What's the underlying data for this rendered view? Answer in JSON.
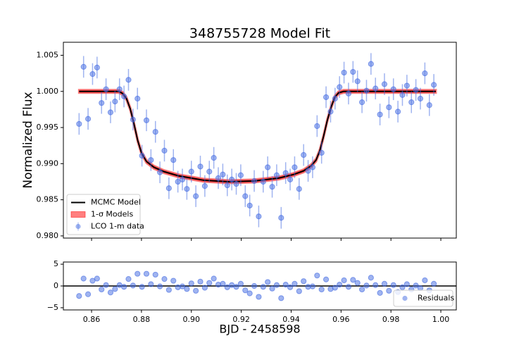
{
  "chart_data": [
    {
      "type": "errorbar",
      "title": "348755728 Model Fit",
      "ylabel": "Normalized Flux",
      "xlim": [
        0.8487,
        1.0062
      ],
      "ylim": [
        0.9797,
        1.0068
      ],
      "yticks": [
        {
          "value": 0.98,
          "label": "0.980"
        },
        0.985,
        {
          "value": 0.99,
          "label": "0.990"
        },
        0.995,
        {
          "value": 1.0,
          "label": "1.000"
        },
        1.005
      ],
      "legend": "lower left",
      "series": [
        {
          "name": "MCMC Model",
          "kind": "line",
          "color": "#000000",
          "x": [
            0.855,
            0.871,
            0.8725,
            0.874,
            0.8755,
            0.877,
            0.8785,
            0.88,
            0.882,
            0.885,
            0.889,
            0.895,
            0.905,
            0.915,
            0.925,
            0.935,
            0.941,
            0.945,
            0.948,
            0.95,
            0.9515,
            0.953,
            0.9545,
            0.956,
            0.9575,
            0.959,
            0.961,
            0.998
          ],
          "values": [
            1.0,
            1.0,
            0.9997,
            0.999,
            0.9976,
            0.9955,
            0.9932,
            0.9915,
            0.9903,
            0.9895,
            0.9889,
            0.9883,
            0.9877,
            0.9875,
            0.9876,
            0.988,
            0.9885,
            0.989,
            0.9897,
            0.9905,
            0.9918,
            0.9938,
            0.996,
            0.9978,
            0.9992,
            0.9998,
            1.0,
            1.0
          ]
        },
        {
          "name": "1-σ Models",
          "kind": "band",
          "color": "#ff0000",
          "x": [
            0.855,
            0.871,
            0.8725,
            0.874,
            0.8755,
            0.877,
            0.8785,
            0.88,
            0.882,
            0.885,
            0.889,
            0.895,
            0.905,
            0.915,
            0.925,
            0.935,
            0.941,
            0.945,
            0.948,
            0.95,
            0.9515,
            0.953,
            0.9545,
            0.956,
            0.9575,
            0.959,
            0.961,
            0.998
          ],
          "low": [
            0.9998,
            0.9998,
            0.9995,
            0.9988,
            0.9974,
            0.9953,
            0.993,
            0.9913,
            0.9901,
            0.9893,
            0.9887,
            0.9881,
            0.9875,
            0.9873,
            0.9874,
            0.9878,
            0.9883,
            0.9888,
            0.9895,
            0.9903,
            0.9916,
            0.9936,
            0.9958,
            0.9976,
            0.999,
            0.9996,
            0.9998,
            0.9998
          ],
          "high": [
            1.0002,
            1.0002,
            0.9999,
            0.9992,
            0.9978,
            0.9957,
            0.9934,
            0.9917,
            0.9905,
            0.9897,
            0.9891,
            0.9885,
            0.9879,
            0.9877,
            0.9878,
            0.9882,
            0.9887,
            0.9892,
            0.9899,
            0.9907,
            0.992,
            0.994,
            0.9962,
            0.998,
            0.9994,
            1.0,
            1.0002,
            1.0002
          ]
        },
        {
          "name": "LCO 1-m data",
          "kind": "points",
          "color": "#4169e1",
          "error": 0.0015,
          "x": [
            0.855,
            0.8568,
            0.8586,
            0.8604,
            0.8622,
            0.864,
            0.8658,
            0.8676,
            0.8694,
            0.8712,
            0.873,
            0.8748,
            0.8766,
            0.8784,
            0.8802,
            0.882,
            0.8838,
            0.8856,
            0.8874,
            0.8892,
            0.891,
            0.8928,
            0.8946,
            0.8964,
            0.8982,
            0.9,
            0.9018,
            0.9036,
            0.9054,
            0.9072,
            0.909,
            0.9108,
            0.9126,
            0.9144,
            0.9162,
            0.918,
            0.9198,
            0.9216,
            0.9234,
            0.9252,
            0.927,
            0.9288,
            0.9306,
            0.9324,
            0.9342,
            0.936,
            0.9378,
            0.9396,
            0.9414,
            0.9432,
            0.945,
            0.9468,
            0.9486,
            0.9504,
            0.9522,
            0.954,
            0.9558,
            0.9576,
            0.9594,
            0.9612,
            0.963,
            0.9648,
            0.9666,
            0.9684,
            0.9702,
            0.972,
            0.9738,
            0.9756,
            0.9774,
            0.9792,
            0.981,
            0.9828,
            0.9846,
            0.9864,
            0.9882,
            0.99,
            0.9918,
            0.9936,
            0.9954,
            0.9972
          ],
          "values": [
            0.9955,
            1.0034,
            0.9962,
            1.0024,
            1.0033,
            0.9984,
            1.0003,
            0.9971,
            0.9986,
            1.0003,
            0.9993,
            1.0016,
            0.9961,
            0.999,
            0.9911,
            0.996,
            0.9905,
            0.9944,
            0.9888,
            0.9918,
            0.9866,
            0.9905,
            0.9875,
            0.9878,
            0.9865,
            0.9889,
            0.9855,
            0.9896,
            0.9869,
            0.9889,
            0.9908,
            0.988,
            0.9885,
            0.987,
            0.9878,
            0.9872,
            0.9884,
            0.9855,
            0.9842,
            0.9876,
            0.9827,
            0.9875,
            0.9895,
            0.9868,
            0.9884,
            0.9825,
            0.9887,
            0.9878,
            0.9895,
            0.9865,
            0.9912,
            0.989,
            0.9895,
            0.9952,
            0.9915,
            0.9992,
            0.9972,
            0.999,
            1.0006,
            1.0026,
            0.9997,
            1.0027,
            1.0014,
            0.9985,
            1.0001,
            1.0038,
            1.0004,
            0.9968,
            1.001,
            0.9978,
            1.0003,
            0.9972,
            0.9995,
            1.0008,
            0.9985,
            1.0002,
            0.999,
            1.0025,
            0.9981,
            1.0009
          ]
        }
      ]
    },
    {
      "type": "scatter",
      "xlabel": "BJD - 2458598",
      "xlim": [
        0.8487,
        1.0062
      ],
      "ylim": [
        -5.5,
        5.5
      ],
      "xticks": [
        0.86,
        0.88,
        {
          "value": 0.9,
          "label": "0.90"
        },
        0.92,
        0.94,
        0.96,
        0.98,
        {
          "value": 1.0,
          "label": "1.00"
        }
      ],
      "yticks": [
        {
          "value": -5,
          "label": "−5"
        },
        0,
        5
      ],
      "hline": 0,
      "legend": "lower right",
      "series": [
        {
          "name": "Residuals",
          "kind": "points",
          "color": "#4169e1",
          "x": [
            0.855,
            0.8568,
            0.8586,
            0.8604,
            0.8622,
            0.864,
            0.8658,
            0.8676,
            0.8694,
            0.8712,
            0.873,
            0.8748,
            0.8766,
            0.8784,
            0.8802,
            0.882,
            0.8838,
            0.8856,
            0.8874,
            0.8892,
            0.891,
            0.8928,
            0.8946,
            0.8964,
            0.8982,
            0.9,
            0.9018,
            0.9036,
            0.9054,
            0.9072,
            0.909,
            0.9108,
            0.9126,
            0.9144,
            0.9162,
            0.918,
            0.9198,
            0.9216,
            0.9234,
            0.9252,
            0.927,
            0.9288,
            0.9306,
            0.9324,
            0.9342,
            0.936,
            0.9378,
            0.9396,
            0.9414,
            0.9432,
            0.945,
            0.9468,
            0.9486,
            0.9504,
            0.9522,
            0.954,
            0.9558,
            0.9576,
            0.9594,
            0.9612,
            0.963,
            0.9648,
            0.9666,
            0.9684,
            0.9702,
            0.972,
            0.9738,
            0.9756,
            0.9774,
            0.9792,
            0.981,
            0.9828,
            0.9846,
            0.9864,
            0.9882,
            0.99,
            0.9918,
            0.9936,
            0.9954,
            0.9972
          ],
          "values": [
            -2.3,
            1.7,
            -1.9,
            1.2,
            1.7,
            -0.8,
            0.2,
            -1.5,
            -0.7,
            0.2,
            -0.2,
            1.6,
            0.1,
            2.8,
            -0.2,
            2.8,
            0.4,
            2.6,
            -0.1,
            1.6,
            -0.9,
            1.2,
            -0.3,
            -0.1,
            -0.7,
            0.6,
            -1.1,
            1.0,
            -0.4,
            0.7,
            1.7,
            0.3,
            0.5,
            -0.3,
            0.2,
            -0.2,
            0.5,
            -1.0,
            -1.7,
            0.0,
            -2.5,
            -0.2,
            0.9,
            -0.6,
            0.2,
            -2.8,
            0.3,
            -0.3,
            0.5,
            -1.2,
            1.1,
            -0.2,
            -0.1,
            2.4,
            -0.8,
            1.5,
            -0.7,
            -0.4,
            0.3,
            1.3,
            -0.2,
            1.4,
            0.7,
            -0.8,
            0.1,
            1.9,
            0.2,
            -1.6,
            0.5,
            -1.1,
            0.2,
            -1.4,
            -0.3,
            0.4,
            -0.8,
            0.1,
            -0.5,
            1.3,
            -1.0,
            0.5
          ]
        }
      ]
    }
  ]
}
